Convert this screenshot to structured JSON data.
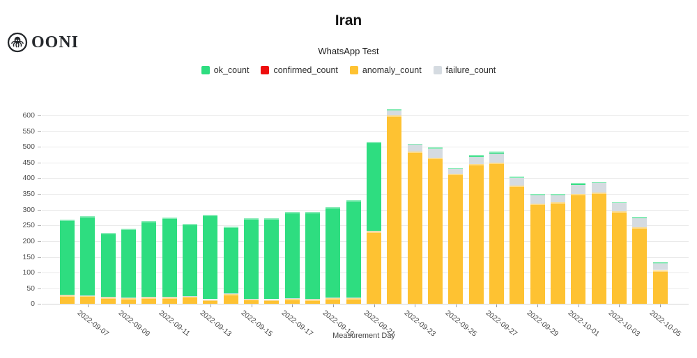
{
  "logo": {
    "text": "OONI"
  },
  "chart_data": {
    "type": "bar",
    "stacked": true,
    "title": "Iran",
    "subtitle": "WhatsApp Test",
    "xlabel": "Measurement Day",
    "ylabel": "",
    "grid": true,
    "legend_position": "top",
    "ylim": [
      0,
      620
    ],
    "yticks": [
      0,
      50,
      100,
      150,
      200,
      250,
      300,
      350,
      400,
      450,
      500,
      550,
      600
    ],
    "x_labeled_every": 2,
    "stack_order": [
      "anomaly_count",
      "confirmed_count",
      "failure_count",
      "ok_count"
    ],
    "categories": [
      "2022-09-06",
      "2022-09-07",
      "2022-09-08",
      "2022-09-09",
      "2022-09-10",
      "2022-09-11",
      "2022-09-12",
      "2022-09-13",
      "2022-09-14",
      "2022-09-15",
      "2022-09-16",
      "2022-09-17",
      "2022-09-18",
      "2022-09-19",
      "2022-09-20",
      "2022-09-21",
      "2022-09-22",
      "2022-09-23",
      "2022-09-24",
      "2022-09-25",
      "2022-09-26",
      "2022-09-27",
      "2022-09-28",
      "2022-09-29",
      "2022-09-30",
      "2022-10-01",
      "2022-10-02",
      "2022-10-03",
      "2022-10-04",
      "2022-10-05"
    ],
    "series": [
      {
        "name": "ok_count",
        "color": "#2edd80",
        "values": [
          240,
          252,
          205,
          220,
          242,
          253,
          229,
          268,
          213,
          256,
          258,
          274,
          276,
          289,
          309,
          283,
          5,
          4,
          5,
          1,
          5,
          6,
          5,
          5,
          4,
          6,
          1,
          1,
          5,
          5
        ]
      },
      {
        "name": "confirmed_count",
        "color": "#ee0e0e",
        "values": [
          0,
          0,
          0,
          0,
          0,
          0,
          0,
          0,
          0,
          0,
          0,
          0,
          0,
          0,
          0,
          0,
          0,
          0,
          0,
          0,
          0,
          0,
          0,
          0,
          0,
          0,
          0,
          0,
          0,
          0
        ]
      },
      {
        "name": "anomaly_count",
        "color": "#fec232",
        "values": [
          28,
          27,
          21,
          19,
          21,
          21,
          24,
          14,
          31,
          16,
          14,
          17,
          14,
          19,
          18,
          230,
          599,
          484,
          465,
          415,
          445,
          450,
          376,
          320,
          323,
          349,
          355,
          295,
          243,
          108
        ]
      },
      {
        "name": "failure_count",
        "color": "#d5dbe1",
        "values": [
          1,
          1,
          1,
          1,
          1,
          1,
          1,
          1,
          2,
          1,
          1,
          1,
          2,
          1,
          3,
          2,
          16,
          22,
          28,
          17,
          23,
          28,
          24,
          26,
          22,
          30,
          32,
          27,
          29,
          20
        ]
      }
    ]
  }
}
